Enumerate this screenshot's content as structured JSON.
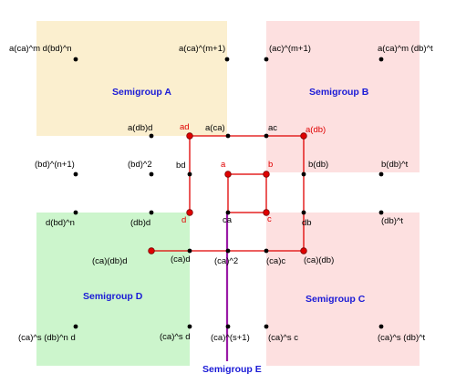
{
  "colors": {
    "semigroup_a": "#fbefcf",
    "semigroup_b": "#fde0e0",
    "semigroup_c": "#fde0e0",
    "semigroup_d": "#ccf5cc",
    "region_title": "#1a1ad6",
    "red_path": "#e00000",
    "purple_line": "#9a1aa6",
    "dot": "#000000"
  },
  "regions": {
    "a": "Semigroup A",
    "b": "Semigroup B",
    "c": "Semigroup C",
    "d": "Semigroup D",
    "e": "Semigroup E"
  },
  "labels": {
    "a_corner": "a(ca)^m d(bd)^n",
    "a_m1": "a(ca)^(m+1)",
    "ac_m1": "(ac)^(m+1)",
    "b_corner": "a(ca)^m (db)^t",
    "adbd": "a(db)d",
    "ad": "ad",
    "a_ca": "a(ca)",
    "ac": "ac",
    "a_db": "a(db)",
    "bd_n1": "(bd)^(n+1)",
    "bd_2": "(bd)^2",
    "bd": "bd",
    "a": "a",
    "b": "b",
    "b_db": "b(db)",
    "b_dbt": "b(db)^t",
    "d_bdn": "d(bd)^n",
    "db_paren": "(db)d",
    "d": "d",
    "ca": "ca",
    "c": "c",
    "db": "db",
    "dbt": "(db)^t",
    "ca_db_d": "(ca)(db)d",
    "ca_d": "(ca)d",
    "ca_2": "(ca)^2",
    "ca_c": "(ca)c",
    "ca_db": "(ca)(db)",
    "d_corner": "(ca)^s (db)^n d",
    "ca_s_d": "(ca)^s d",
    "ca_s1": "(ca)^(s+1)",
    "ca_s_c": "(ca)^s c",
    "c_corner": "(ca)^s (db)^t"
  }
}
